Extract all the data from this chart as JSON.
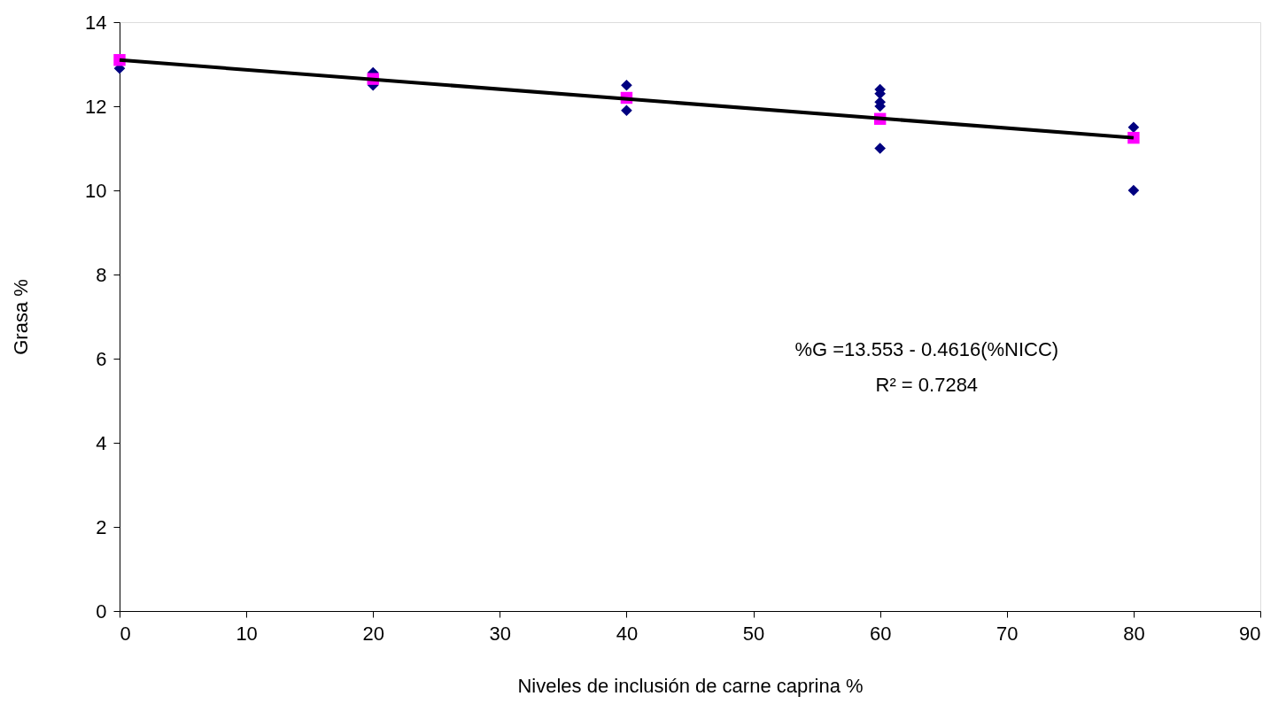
{
  "chart_data": {
    "type": "scatter",
    "xlabel": "Niveles de inclusión de carne caprina %",
    "ylabel": "Grasa %",
    "xlim": [
      0,
      90
    ],
    "xticks": [
      0,
      10,
      20,
      30,
      40,
      50,
      60,
      70,
      80,
      90
    ],
    "ylim": [
      0,
      14
    ],
    "yticks": [
      0,
      2,
      4,
      6,
      8,
      10,
      12,
      14
    ],
    "grid": false,
    "annotations": [
      "%G =13.553 - 0.4616(%NICC)",
      "R² = 0.7284"
    ],
    "series": [
      {
        "marker": "diamond",
        "color": "#000080",
        "x": [
          0,
          20,
          20,
          40,
          40,
          60,
          60,
          60,
          60,
          60,
          80,
          80
        ],
        "values": [
          12.9,
          12.8,
          12.5,
          12.5,
          11.9,
          12.4,
          12.3,
          12.1,
          12.0,
          11.0,
          11.5,
          10.0
        ]
      },
      {
        "type": "scatter",
        "marker": "square",
        "color": "#ff00ff",
        "x": [
          0,
          20,
          40,
          60,
          80
        ],
        "values": [
          13.1,
          12.65,
          12.2,
          11.7,
          11.25
        ]
      },
      {
        "type": "line",
        "marker": "none",
        "color": "#000000",
        "x": [
          0,
          80
        ],
        "values": [
          13.1,
          11.25
        ]
      }
    ]
  }
}
